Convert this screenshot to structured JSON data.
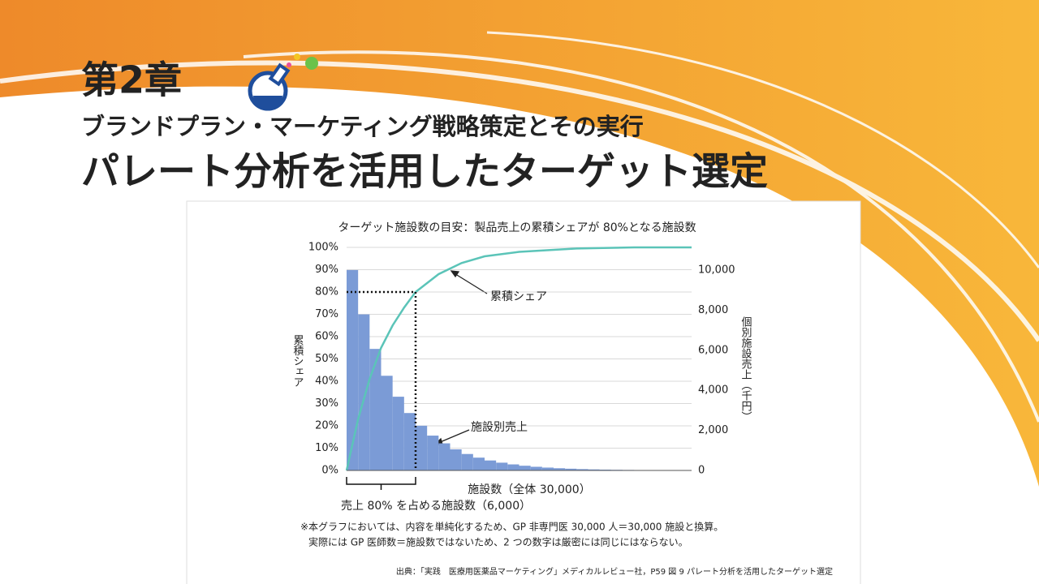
{
  "header": {
    "chapter": "第2章",
    "subtitle": "ブランドプラン・マーケティング戦略策定とその実行",
    "title": "パレート分析を活用したターゲット選定"
  },
  "chart_data": {
    "type": "pareto",
    "title": "ターゲット施設数の目安：製品売上の累積シェアが 80%となる施設数",
    "ylabel": "累積シェア",
    "y2label": "個別施設売上（千円）",
    "xlabel": "施設数（全体 30,000）",
    "xlim": [
      0,
      30000
    ],
    "ylim": [
      0,
      100
    ],
    "y2lim": [
      0,
      11130
    ],
    "yticks": [
      {
        "value": 0,
        "label": "0%"
      },
      {
        "value": 10,
        "label": "10%"
      },
      {
        "value": 20,
        "label": "20%"
      },
      {
        "value": 30,
        "label": "30%"
      },
      {
        "value": 40,
        "label": "40%"
      },
      {
        "value": 50,
        "label": "50%"
      },
      {
        "value": 60,
        "label": "60%"
      },
      {
        "value": 70,
        "label": "70%"
      },
      {
        "value": 80,
        "label": "80%"
      },
      {
        "value": 90,
        "label": "90%"
      },
      {
        "value": 100,
        "label": "100%"
      }
    ],
    "y2ticks": [
      0,
      {
        "value": 2000,
        "label": "2,000"
      },
      {
        "value": 4000,
        "label": "4,000"
      },
      {
        "value": 6000,
        "label": "6,000"
      },
      {
        "value": 8000,
        "label": "8,000"
      },
      {
        "value": 10000,
        "label": "10,000"
      }
    ],
    "grid": true,
    "series": [
      {
        "name": "施設別売上",
        "type": "bar",
        "axis": "y2",
        "color": "#7b9bd6",
        "bins": [
          0,
          1000,
          2000,
          3000,
          4000,
          5000,
          6000,
          7000,
          8000,
          9000,
          10000,
          11000,
          12000,
          13000,
          14000,
          15000,
          16000,
          17000,
          18000,
          19000,
          20000,
          21000,
          22000,
          23000,
          24000,
          25000,
          26000,
          27000,
          28000,
          29000,
          30000
        ],
        "values": [
          10000,
          7788,
          6065,
          4724,
          3679,
          2865,
          2231,
          1738,
          1353,
          1054,
          821,
          639,
          498,
          388,
          302,
          235,
          183,
          143,
          111,
          87,
          67,
          52,
          41,
          32,
          25,
          19,
          15,
          12,
          9,
          7
        ]
      },
      {
        "name": "累積シェア",
        "type": "line",
        "axis": "y",
        "color": "#5bc4b8",
        "x": [
          0,
          1000,
          2000,
          3000,
          4000,
          5000,
          6000,
          8000,
          10000,
          12000,
          15000,
          20000,
          25000,
          30000
        ],
        "values": [
          0,
          23,
          41,
          55,
          65,
          73,
          80,
          88,
          93,
          96,
          98,
          99.5,
          100,
          100
        ]
      }
    ],
    "reference": {
      "x": 6000,
      "y": 80,
      "label": "売上 80% を占める施設数（6,000）"
    },
    "notes": [
      "※本グラフにおいては、内容を単純化するため、GP 非専門医 30,000 人＝30,000 施設と換算。",
      "実際には GP 医師数＝施設数ではないため、2 つの数字は厳密には同じにはならない。"
    ],
    "source": "出典：「実践　医療用医薬品マーケティング」メディカルレビュー社，P59 図 9 パレート分析を活用したターゲット選定"
  }
}
